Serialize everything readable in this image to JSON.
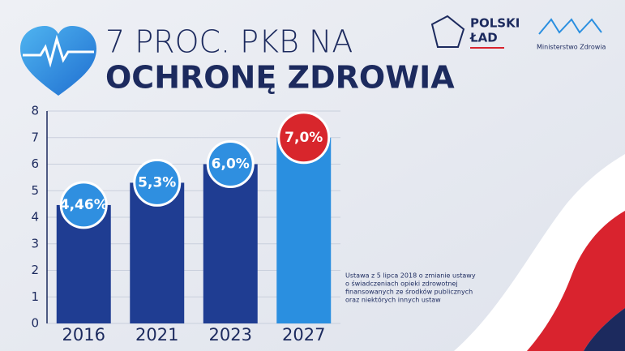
{
  "chart_data": {
    "type": "bar",
    "title": "7 PROC. PKB NA",
    "subtitle": "OCHRONĘ ZDROWIA",
    "logo_left": [
      "POLSKI",
      "ŁAD"
    ],
    "logo_right": "Ministerstwo Zdrowia",
    "note": [
      "Ustawa z 5 lipca 2018 o zmianie ustawy",
      "o świadczeniach opieki zdrowotnej",
      "finansowanych ze środków publicznych",
      "oraz niektórych innych ustaw"
    ],
    "categories": [
      "2016",
      "2021",
      "2023",
      "2027"
    ],
    "values": [
      4.46,
      5.3,
      6.0,
      7.0
    ],
    "value_labels": [
      "4,46%",
      "5,3%",
      "6,0%",
      "7,0%"
    ],
    "colors": [
      "#1f3d92",
      "#1f3d92",
      "#1f3d92",
      "#2a8fe0"
    ],
    "label_colors": [
      "#2f8fe0",
      "#2f8fe0",
      "#2f8fe0",
      "#d8262c"
    ],
    "ylim": [
      0,
      8
    ],
    "yticks": [
      0,
      1,
      2,
      3,
      4,
      5,
      6,
      7,
      8
    ],
    "grid": true
  }
}
